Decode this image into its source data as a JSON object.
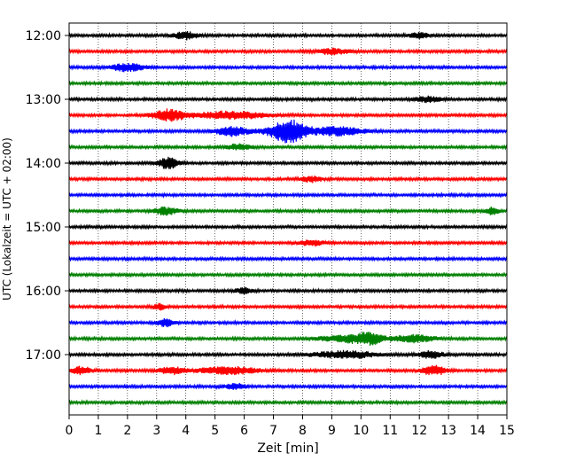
{
  "chart_data": {
    "type": "line",
    "title": "",
    "xlabel": "Zeit  [min]",
    "ylabel": "UTC (Lokalzeit = UTC + 02:00)",
    "xlim": [
      0,
      15
    ],
    "x_ticks": [
      "0",
      "1",
      "2",
      "3",
      "4",
      "5",
      "6",
      "7",
      "8",
      "9",
      "10",
      "11",
      "12",
      "13",
      "14",
      "15"
    ],
    "y_ticks": [
      "12:00",
      "13:00",
      "14:00",
      "15:00",
      "16:00",
      "17:00"
    ],
    "grid": "vertical-dotted",
    "trace_interval_min": 15,
    "colors": [
      "#000000",
      "#ff0000",
      "#0000ff",
      "#008000"
    ],
    "series": [
      {
        "start": "12:00",
        "color": "#000000",
        "bursts": [
          [
            4.0,
            0.6,
            4
          ],
          [
            12.0,
            0.5,
            3
          ]
        ]
      },
      {
        "start": "12:15",
        "color": "#ff0000",
        "bursts": [
          [
            9.0,
            0.8,
            3
          ]
        ]
      },
      {
        "start": "12:30",
        "color": "#0000ff",
        "bursts": [
          [
            2.0,
            0.8,
            4
          ]
        ]
      },
      {
        "start": "12:45",
        "color": "#008000",
        "bursts": []
      },
      {
        "start": "13:00",
        "color": "#000000",
        "bursts": [
          [
            12.3,
            0.6,
            3
          ]
        ]
      },
      {
        "start": "13:15",
        "color": "#ff0000",
        "bursts": [
          [
            3.4,
            0.8,
            6
          ],
          [
            5.5,
            1.8,
            4
          ]
        ]
      },
      {
        "start": "13:30",
        "color": "#0000ff",
        "bursts": [
          [
            5.6,
            0.8,
            5
          ],
          [
            7.5,
            0.9,
            13
          ],
          [
            9.2,
            1.2,
            5
          ]
        ]
      },
      {
        "start": "13:45",
        "color": "#008000",
        "bursts": [
          [
            5.8,
            0.6,
            3
          ]
        ]
      },
      {
        "start": "14:00",
        "color": "#000000",
        "bursts": [
          [
            3.4,
            0.5,
            6
          ]
        ]
      },
      {
        "start": "14:15",
        "color": "#ff0000",
        "bursts": [
          [
            8.3,
            0.5,
            3
          ]
        ]
      },
      {
        "start": "14:30",
        "color": "#0000ff",
        "bursts": []
      },
      {
        "start": "14:45",
        "color": "#008000",
        "bursts": [
          [
            3.3,
            0.6,
            4
          ],
          [
            14.5,
            0.3,
            4
          ]
        ]
      },
      {
        "start": "15:00",
        "color": "#000000",
        "bursts": []
      },
      {
        "start": "15:15",
        "color": "#ff0000",
        "bursts": [
          [
            8.3,
            0.6,
            3
          ]
        ]
      },
      {
        "start": "15:30",
        "color": "#0000ff",
        "bursts": []
      },
      {
        "start": "15:45",
        "color": "#008000",
        "bursts": []
      },
      {
        "start": "16:00",
        "color": "#000000",
        "bursts": [
          [
            6.0,
            0.4,
            3
          ]
        ]
      },
      {
        "start": "16:15",
        "color": "#ff0000",
        "bursts": [
          [
            3.1,
            0.3,
            3
          ]
        ]
      },
      {
        "start": "16:30",
        "color": "#0000ff",
        "bursts": [
          [
            3.3,
            0.4,
            4
          ]
        ]
      },
      {
        "start": "16:45",
        "color": "#008000",
        "bursts": [
          [
            9.5,
            1.3,
            4
          ],
          [
            10.3,
            0.6,
            5
          ],
          [
            11.8,
            1.0,
            4
          ]
        ]
      },
      {
        "start": "17:00",
        "color": "#000000",
        "bursts": [
          [
            9.5,
            1.5,
            4
          ],
          [
            12.4,
            0.6,
            4
          ]
        ]
      },
      {
        "start": "17:15",
        "color": "#ff0000",
        "bursts": [
          [
            0.4,
            0.5,
            4
          ],
          [
            3.5,
            0.6,
            4
          ],
          [
            5.5,
            1.5,
            4
          ],
          [
            12.5,
            0.6,
            5
          ]
        ]
      },
      {
        "start": "17:30",
        "color": "#0000ff",
        "bursts": [
          [
            5.7,
            0.5,
            3
          ]
        ]
      },
      {
        "start": "17:45",
        "color": "#008000",
        "bursts": []
      }
    ]
  }
}
